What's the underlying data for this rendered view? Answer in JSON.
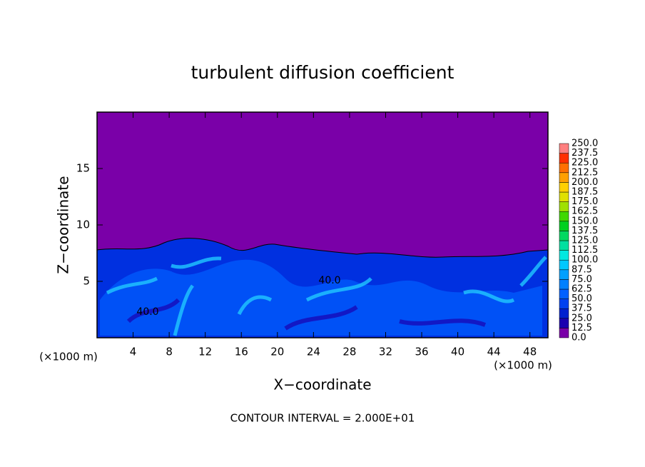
{
  "chart_data": {
    "type": "contour",
    "title": "turbulent diffusion coefficient",
    "x_label": "X−coordinate",
    "y_label": "Z−coordinate",
    "x_unit": "(×1000 m)",
    "y_unit": "(×1000 m)",
    "footer": "CONTOUR INTERVAL = 2.000E+01",
    "annotations": [
      "40.0",
      "40.0"
    ],
    "xlim": [
      0,
      50
    ],
    "ylim": [
      0,
      20
    ],
    "xticks": [
      4,
      8,
      12,
      16,
      20,
      24,
      28,
      32,
      36,
      40,
      44,
      48
    ],
    "yticks": [
      5,
      10,
      15
    ],
    "colorbar": {
      "levels": [
        {
          "value": 0,
          "label": "0.0"
        },
        {
          "value": 12.5,
          "label": "12.5"
        },
        {
          "value": 25,
          "label": "25.0"
        },
        {
          "value": 37.5,
          "label": "37.5"
        },
        {
          "value": 50,
          "label": "50.0"
        },
        {
          "value": 62.5,
          "label": "62.5"
        },
        {
          "value": 75,
          "label": "75.0"
        },
        {
          "value": 87.5,
          "label": "87.5"
        },
        {
          "value": 100,
          "label": "100.0"
        },
        {
          "value": 112.5,
          "label": "112.5"
        },
        {
          "value": 125,
          "label": "125.0"
        },
        {
          "value": 137.5,
          "label": "137.5"
        },
        {
          "value": 150,
          "label": "150.0"
        },
        {
          "value": 162.5,
          "label": "162.5"
        },
        {
          "value": 175,
          "label": "175.0"
        },
        {
          "value": 187.5,
          "label": "187.5"
        },
        {
          "value": 200,
          "label": "200.0"
        },
        {
          "value": 212.5,
          "label": "212.5"
        },
        {
          "value": 225,
          "label": "225.0"
        },
        {
          "value": 237.5,
          "label": "237.5"
        },
        {
          "value": 250,
          "label": "250.0"
        }
      ],
      "colors": [
        "#7a00a8",
        "#1a00b0",
        "#0020d0",
        "#0040f0",
        "#0060ff",
        "#0080ff",
        "#00a0ff",
        "#00c8ff",
        "#00e8e0",
        "#00e0a0",
        "#00d860",
        "#00d020",
        "#40d800",
        "#a0e000",
        "#e0e000",
        "#ffd000",
        "#ffa000",
        "#ff7000",
        "#ff3000",
        "#ff8080"
      ]
    }
  }
}
